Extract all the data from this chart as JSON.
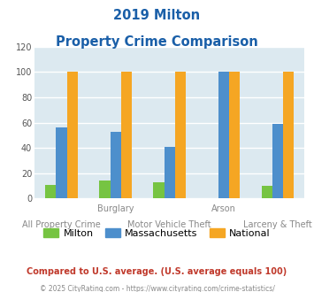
{
  "title_line1": "2019 Milton",
  "title_line2": "Property Crime Comparison",
  "categories": [
    "All Property Crime",
    "Burglary",
    "Motor Vehicle Theft",
    "Arson",
    "Larceny & Theft"
  ],
  "category_top_labels": [
    "",
    "Burglary",
    "",
    "Arson",
    ""
  ],
  "category_bot_labels": [
    "All Property Crime",
    "",
    "Motor Vehicle Theft",
    "",
    "Larceny & Theft"
  ],
  "milton": [
    11,
    14,
    13,
    0,
    10
  ],
  "massachusetts": [
    56,
    53,
    41,
    100,
    59
  ],
  "national": [
    100,
    100,
    100,
    100,
    100
  ],
  "bar_colors": {
    "milton": "#76c442",
    "massachusetts": "#4d8fcc",
    "national": "#f5a623"
  },
  "ylim": [
    0,
    120
  ],
  "yticks": [
    0,
    20,
    40,
    60,
    80,
    100,
    120
  ],
  "title_color": "#1a5fa8",
  "axis_bg_color": "#dce9f0",
  "fig_bg_color": "#ffffff",
  "grid_color": "#ffffff",
  "legend_labels": [
    "Milton",
    "Massachusetts",
    "National"
  ],
  "footnote1": "Compared to U.S. average. (U.S. average equals 100)",
  "footnote2": "© 2025 CityRating.com - https://www.cityrating.com/crime-statistics/",
  "footnote1_color": "#c0392b",
  "footnote2_color": "#888888"
}
